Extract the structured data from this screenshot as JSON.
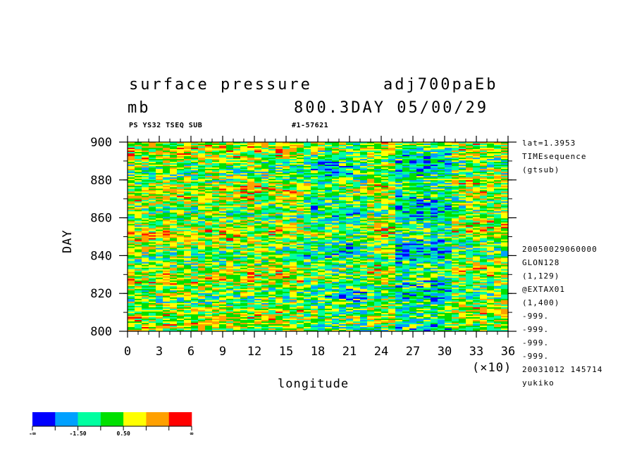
{
  "header": {
    "title_left": "surface pressure",
    "title_right": "adj700paEb",
    "units": "mb",
    "time_label": "800.3DAY 05/00/29",
    "sub_left": "PS YS32 TSEQ SUB",
    "sub_right": "#1-57621"
  },
  "side_info": [
    "lat=1.3953",
    "TIMEsequence",
    "(gtsub)"
  ],
  "side_meta": [
    "20050029060000",
    "GLON128",
    "(1,129)",
    "@EXTAX01",
    "(1,400)",
    "-999.",
    "-999.",
    "-999.",
    "-999.",
    "20031012 145714",
    "yukiko"
  ],
  "chart_data": {
    "type": "heatmap",
    "xlabel": "longitude",
    "ylabel": "DAY",
    "x_multiplier_label": "(×10)",
    "xlim": [
      0,
      36
    ],
    "ylim": [
      800,
      900
    ],
    "x_ticks": [
      "0",
      "3",
      "6",
      "9",
      "12",
      "15",
      "18",
      "21",
      "24",
      "27",
      "30",
      "33",
      "36"
    ],
    "y_ticks": [
      "800",
      "820",
      "840",
      "860",
      "880",
      "900"
    ],
    "colorbar": {
      "colors": [
        "#0000ff",
        "#00a0ff",
        "#00ffa0",
        "#00e000",
        "#ffff00",
        "#ffa000",
        "#ff0000"
      ],
      "labels": [
        "-∞",
        "-1.50",
        "0.50",
        "∞"
      ]
    }
  }
}
